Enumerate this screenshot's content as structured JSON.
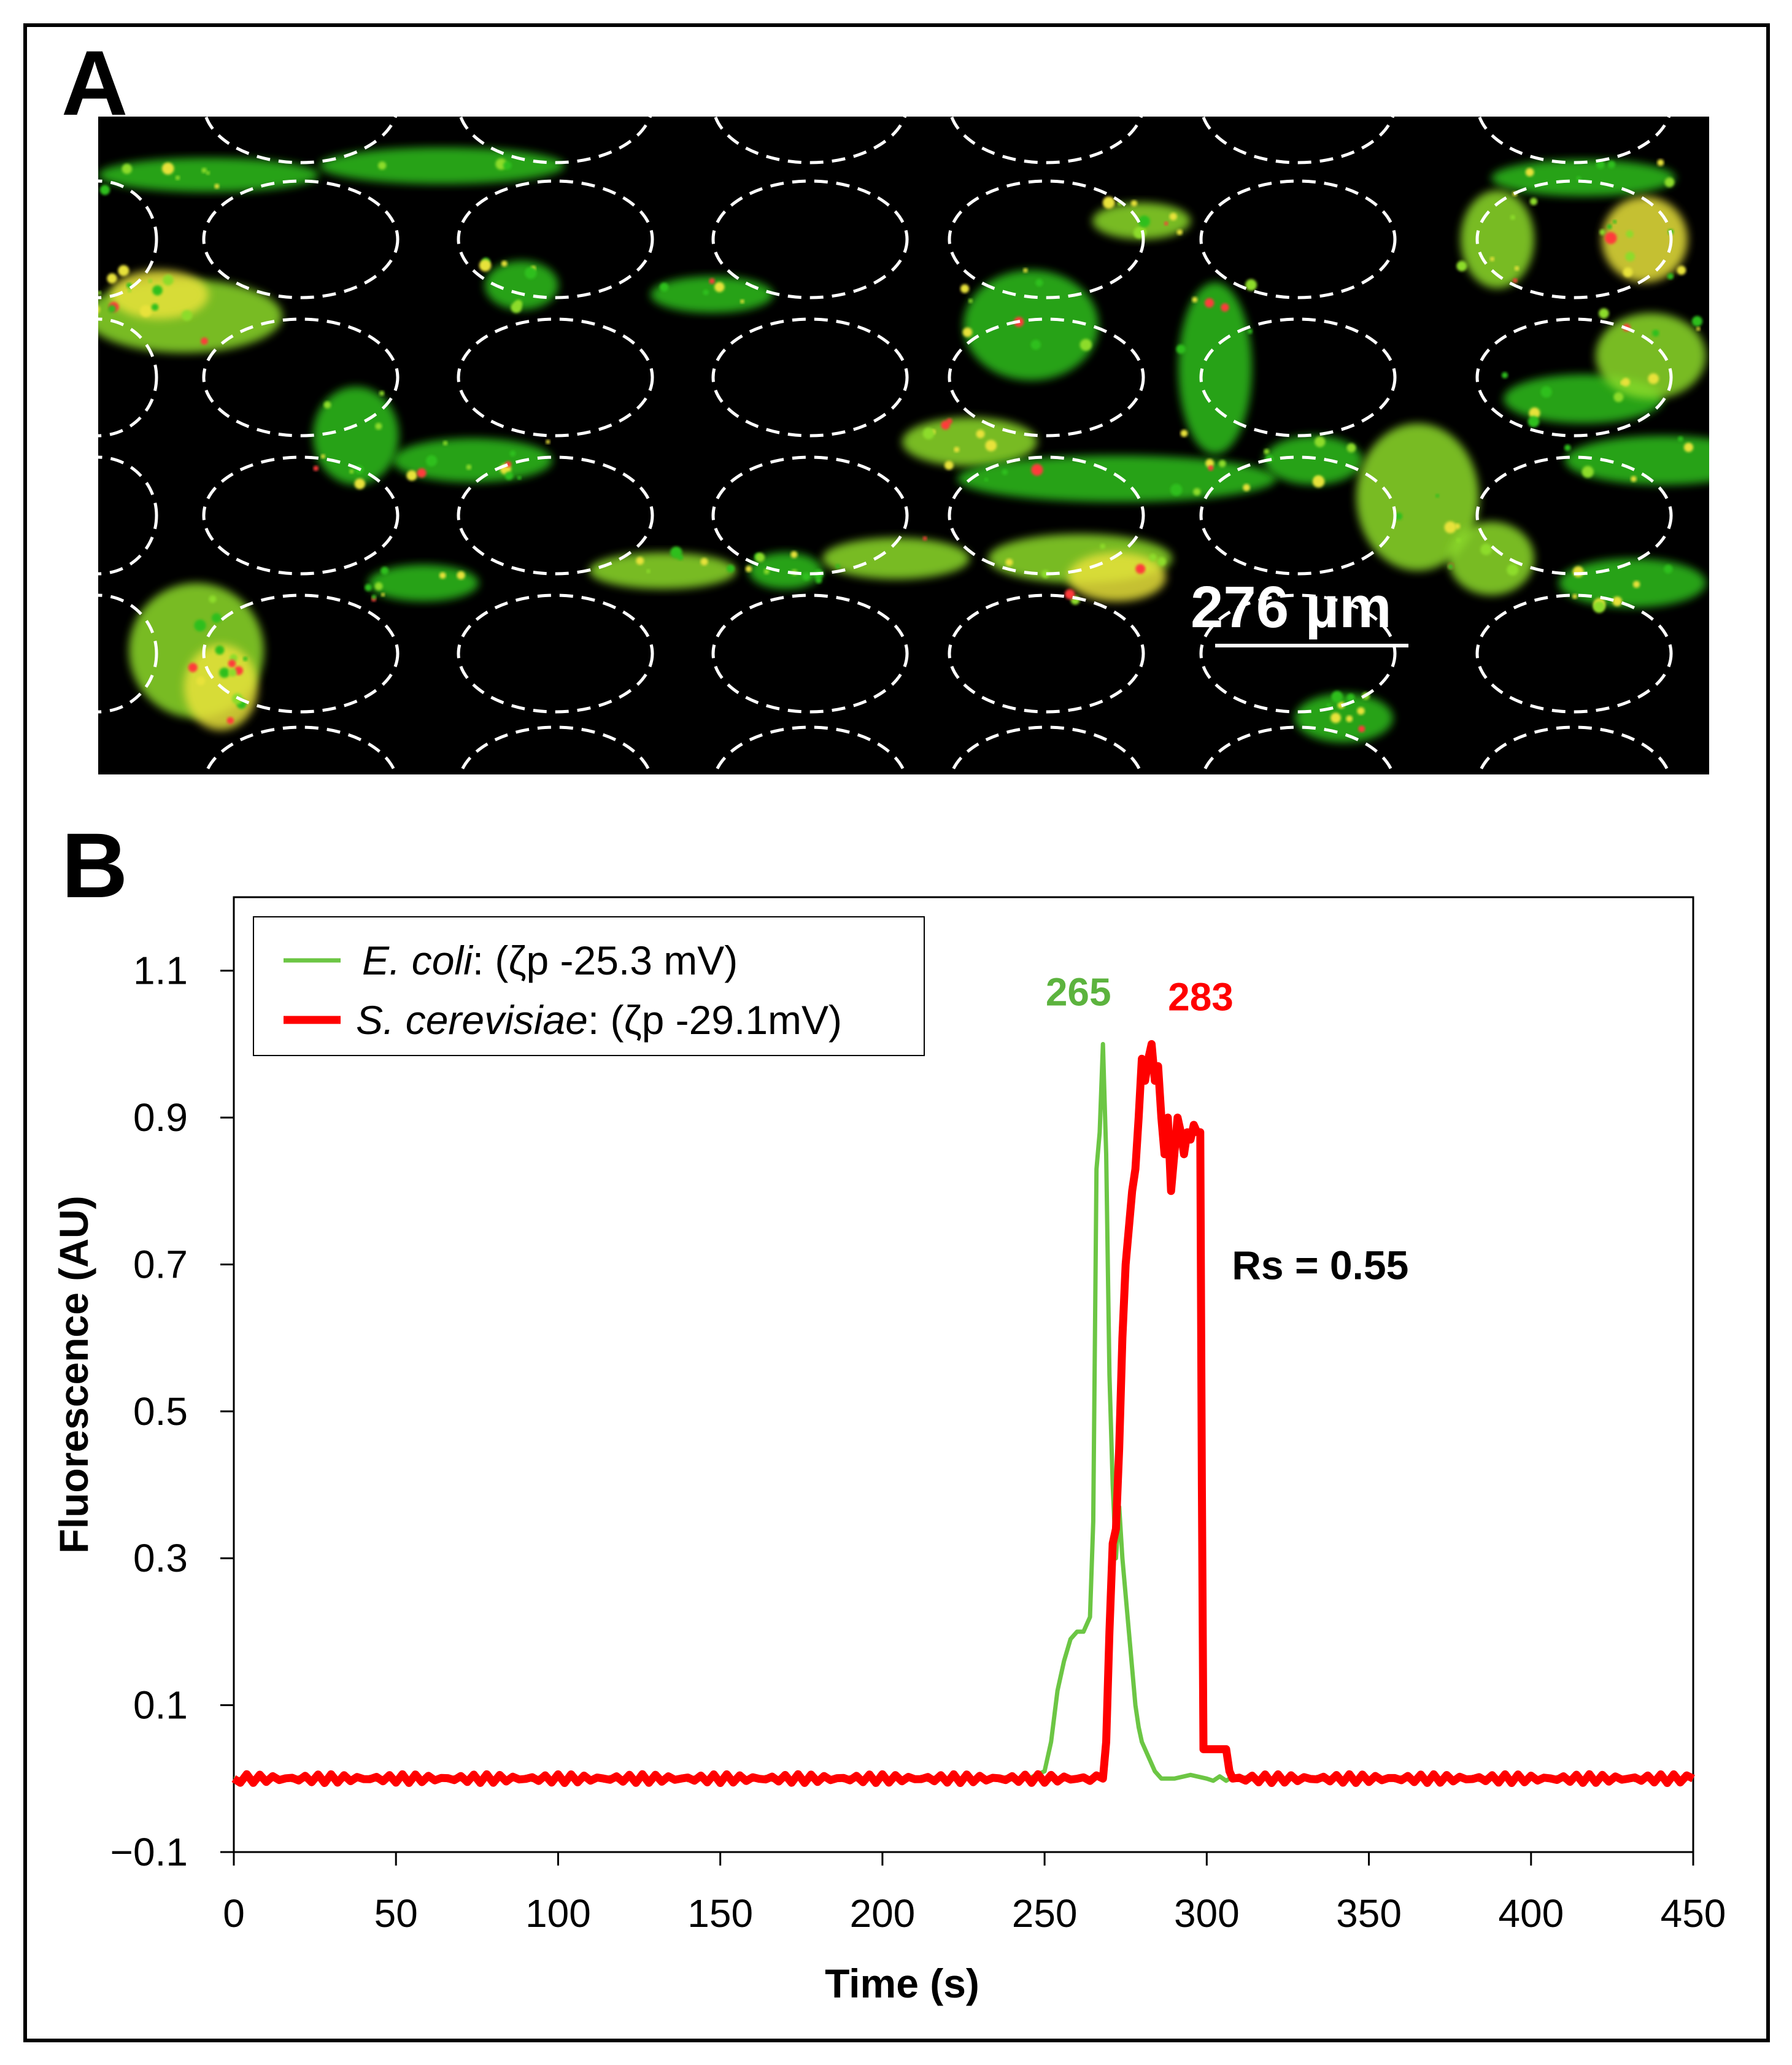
{
  "panels": {
    "a": "A",
    "b": "B"
  },
  "micrograph": {
    "scale_bar_label": "276 µm",
    "background_color": "#000000",
    "outline_color": "#ffffff",
    "fluorescence_colors": [
      "#2fbf1f",
      "#8ddc2a",
      "#e8e23a",
      "#ff3a3a"
    ]
  },
  "chart_data": {
    "type": "line",
    "xlabel": "Time (s)",
    "ylabel": "Fluorescence (AU)",
    "xlim": [
      0,
      450
    ],
    "ylim": [
      -0.1,
      1.2
    ],
    "xticks": [
      0,
      50,
      100,
      150,
      200,
      250,
      300,
      350,
      400,
      450
    ],
    "yticks": [
      -0.1,
      0.1,
      0.3,
      0.5,
      0.7,
      0.9,
      1.1
    ],
    "ytick_labels": [
      "−0.1",
      "0.1",
      "0.3",
      "0.5",
      "0.7",
      "0.9",
      "1.1"
    ],
    "grid": false,
    "legend_position": "top-left",
    "series": [
      {
        "name": "E. coli",
        "legend_italic": "E. coli",
        "legend_rest": ": (ζp -25.3 mV)",
        "color": "#6cc644",
        "peak_label": "265",
        "x": [
          0,
          245,
          250,
          252,
          254,
          256,
          258,
          260,
          262,
          264,
          265,
          266,
          267,
          268,
          269,
          270,
          271,
          272,
          273,
          274,
          275,
          276,
          277,
          278,
          279,
          280,
          282,
          284,
          286,
          288,
          290,
          295,
          300,
          310,
          320,
          450
        ],
        "y": [
          0,
          0,
          0.01,
          0.05,
          0.12,
          0.16,
          0.19,
          0.2,
          0.2,
          0.22,
          0.35,
          0.83,
          0.88,
          1.0,
          0.85,
          0.55,
          0.4,
          0.3,
          0.37,
          0.3,
          0.25,
          0.2,
          0.15,
          0.1,
          0.07,
          0.05,
          0.03,
          0.01,
          0,
          0,
          0,
          0.005,
          0,
          0,
          0,
          0
        ]
      },
      {
        "name": "S. cerevisiae",
        "legend_italic": "S. cerevisiae",
        "legend_rest": ": (ζp -29.1mV)",
        "color": "#ff0000",
        "peak_label": "283",
        "x": [
          0,
          268,
          269,
          270,
          271,
          272,
          273,
          274,
          275,
          276,
          277,
          278,
          279,
          280,
          281,
          282,
          283,
          284,
          285,
          286,
          287,
          288,
          289,
          290,
          291,
          292,
          293,
          294,
          295,
          296,
          297,
          298,
          298.5,
          299,
          300,
          306,
          307,
          308,
          450
        ],
        "y": [
          0,
          0,
          0.05,
          0.2,
          0.32,
          0.34,
          0.45,
          0.6,
          0.7,
          0.75,
          0.8,
          0.83,
          0.9,
          0.98,
          0.95,
          0.98,
          1.0,
          0.95,
          0.97,
          0.9,
          0.85,
          0.9,
          0.8,
          0.85,
          0.9,
          0.88,
          0.85,
          0.88,
          0.87,
          0.89,
          0.88,
          0.88,
          0.4,
          0.04,
          0.04,
          0.04,
          0.01,
          0,
          0
        ]
      }
    ],
    "annotations": [
      {
        "text": "Rs = 0.55",
        "x": 335,
        "y": 0.68
      }
    ]
  }
}
